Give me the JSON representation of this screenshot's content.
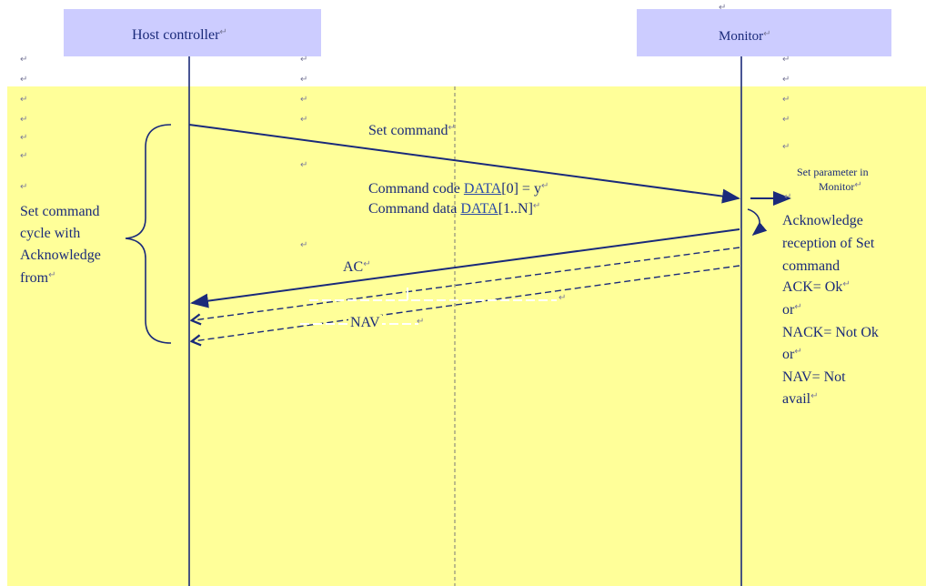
{
  "colors": {
    "background": "#ffffff",
    "sequence_area": "#ffff99",
    "lifeline_header": "#ccccff",
    "line": "#1a2a7a",
    "text": "#1a2a7a",
    "link": "#2a4aa8"
  },
  "pilcrow": "↵",
  "lifelines": {
    "host": {
      "label": "Host controller"
    },
    "monitor": {
      "label": "Monitor"
    }
  },
  "messages": {
    "set_command": "Set command",
    "command_code_prefix": "Command code ",
    "command_code_link": "DATA",
    "command_code_suffix": "[0] = y",
    "command_data_prefix": "Command data ",
    "command_data_link": "DATA",
    "command_data_suffix": "[1..N]",
    "ack_label": "AC",
    "nav_label": "NAV"
  },
  "set_parameter": {
    "line1": "Set parameter in",
    "line2": "Monitor"
  },
  "left_note": {
    "line1": "Set command",
    "line2": "cycle with",
    "line3": "Acknowledge",
    "line4": "from"
  },
  "right_note": {
    "line1": "Acknowledge",
    "line2": "reception of Set",
    "line3": "command",
    "line4": "ACK= Ok",
    "line5": "or",
    "line6": "NACK= Not Ok",
    "line7": "or",
    "line8": "NAV= Not",
    "line9": "avail"
  }
}
